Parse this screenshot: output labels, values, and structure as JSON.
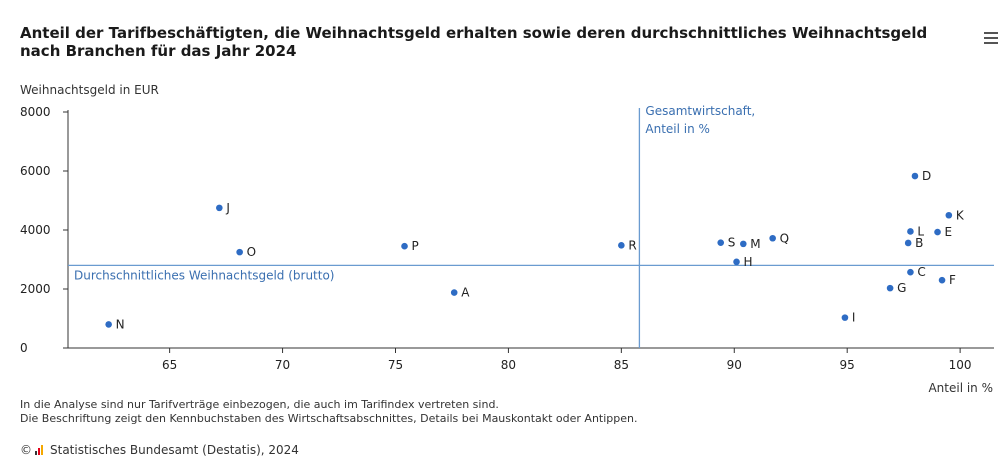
{
  "title": "Anteil der Tarifbeschäftigten, die Weihnachtsgeld erhalten sowie deren durchschnittliches Weihnachtsgeld nach Branchen für das Jahr 2024",
  "menu_icon": "hamburger-menu-icon",
  "notes": [
    "In die Analyse sind nur Tarifverträge einbezogen, die auch im Tarifindex vertreten sind.",
    "Die Beschriftung zeigt den Kennbuchstaben des Wirtschaftsabschnittes, Details bei Mauskontakt oder Antippen."
  ],
  "source": {
    "copyright": "©",
    "logo_icon": "destatis-logo-icon",
    "text": "Statistisches Bundesamt (Destatis), 2024"
  },
  "colors": {
    "point": "#2e6cc4",
    "reference_line": "#6a9bd0",
    "reference_text": "#3a6fb0",
    "axis": "#333333"
  },
  "chart_data": {
    "type": "scatter",
    "xlabel": "Anteil in %",
    "ylabel": "Weihnachtsgeld in EUR",
    "xlim": [
      60.5,
      101.5
    ],
    "ylim": [
      0,
      8000
    ],
    "x_ticks": [
      65,
      70,
      75,
      80,
      85,
      90,
      95,
      100
    ],
    "y_ticks": [
      0,
      2000,
      4000,
      6000,
      8000
    ],
    "points": [
      {
        "label": "N",
        "x": 62.3,
        "y": 800
      },
      {
        "label": "J",
        "x": 67.2,
        "y": 4750
      },
      {
        "label": "O",
        "x": 68.1,
        "y": 3250
      },
      {
        "label": "P",
        "x": 75.4,
        "y": 3450
      },
      {
        "label": "A",
        "x": 77.6,
        "y": 1880
      },
      {
        "label": "R",
        "x": 85.0,
        "y": 3480
      },
      {
        "label": "S",
        "x": 89.4,
        "y": 3570
      },
      {
        "label": "M",
        "x": 90.4,
        "y": 3530
      },
      {
        "label": "H",
        "x": 90.1,
        "y": 2920
      },
      {
        "label": "Q",
        "x": 91.7,
        "y": 3720
      },
      {
        "label": "I",
        "x": 94.9,
        "y": 1030
      },
      {
        "label": "G",
        "x": 96.9,
        "y": 2030
      },
      {
        "label": "D",
        "x": 98.0,
        "y": 5830
      },
      {
        "label": "L",
        "x": 97.8,
        "y": 3950
      },
      {
        "label": "B",
        "x": 97.7,
        "y": 3560
      },
      {
        "label": "C",
        "x": 97.8,
        "y": 2570
      },
      {
        "label": "E",
        "x": 99.0,
        "y": 3930
      },
      {
        "label": "K",
        "x": 99.5,
        "y": 4500
      },
      {
        "label": "F",
        "x": 99.2,
        "y": 2300
      }
    ],
    "reference_lines": {
      "vertical": {
        "x": 85.8,
        "label_line1": "Gesamtwirtschaft,",
        "label_line2": "Anteil in %"
      },
      "horizontal": {
        "y": 2800,
        "label": "Durchschnittliches Weihnachtsgeld (brutto)"
      }
    }
  }
}
